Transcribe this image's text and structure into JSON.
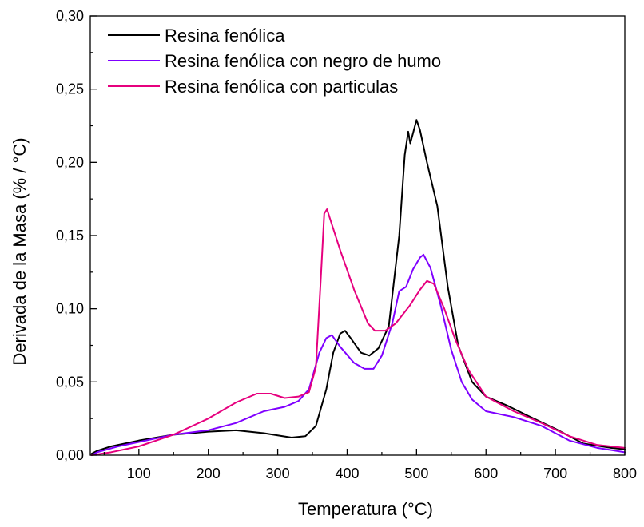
{
  "chart_data": {
    "type": "line",
    "title": "",
    "xlabel": "Temperatura (°C)",
    "ylabel": "Derivada de la Masa (% / °C)",
    "xlim": [
      30,
      800
    ],
    "ylim": [
      0,
      0.3
    ],
    "x_ticks": [
      100,
      200,
      300,
      400,
      500,
      600,
      700,
      800
    ],
    "x_tick_labels": [
      "100",
      "200",
      "300",
      "400",
      "500",
      "600",
      "700",
      "800"
    ],
    "y_ticks": [
      0,
      0.05,
      0.1,
      0.15,
      0.2,
      0.25,
      0.3
    ],
    "y_tick_labels": [
      "0,00",
      "0,05",
      "0,10",
      "0,15",
      "0,20",
      "0,25",
      "0,30"
    ],
    "grid": false,
    "legend_position": "top-left",
    "series": [
      {
        "name": "Resina fenólica",
        "color": "#000000",
        "points": [
          [
            32,
            0.001
          ],
          [
            40,
            0.003
          ],
          [
            60,
            0.006
          ],
          [
            100,
            0.01
          ],
          [
            150,
            0.014
          ],
          [
            200,
            0.016
          ],
          [
            240,
            0.017
          ],
          [
            280,
            0.015
          ],
          [
            320,
            0.012
          ],
          [
            340,
            0.013
          ],
          [
            355,
            0.02
          ],
          [
            370,
            0.045
          ],
          [
            380,
            0.07
          ],
          [
            390,
            0.083
          ],
          [
            397,
            0.085
          ],
          [
            405,
            0.08
          ],
          [
            420,
            0.07
          ],
          [
            432,
            0.068
          ],
          [
            445,
            0.073
          ],
          [
            460,
            0.088
          ],
          [
            475,
            0.15
          ],
          [
            483,
            0.205
          ],
          [
            488,
            0.221
          ],
          [
            491,
            0.213
          ],
          [
            495,
            0.22
          ],
          [
            500,
            0.229
          ],
          [
            505,
            0.222
          ],
          [
            515,
            0.2
          ],
          [
            530,
            0.17
          ],
          [
            545,
            0.115
          ],
          [
            560,
            0.075
          ],
          [
            580,
            0.05
          ],
          [
            600,
            0.04
          ],
          [
            630,
            0.034
          ],
          [
            660,
            0.027
          ],
          [
            700,
            0.018
          ],
          [
            740,
            0.008
          ],
          [
            780,
            0.005
          ],
          [
            800,
            0.004
          ]
        ]
      },
      {
        "name": "Resina fenólica con negro de humo",
        "color": "#7f00ff",
        "points": [
          [
            32,
            0.0
          ],
          [
            40,
            0.002
          ],
          [
            70,
            0.006
          ],
          [
            100,
            0.009
          ],
          [
            150,
            0.014
          ],
          [
            200,
            0.017
          ],
          [
            240,
            0.022
          ],
          [
            280,
            0.03
          ],
          [
            310,
            0.033
          ],
          [
            330,
            0.037
          ],
          [
            345,
            0.045
          ],
          [
            360,
            0.07
          ],
          [
            370,
            0.08
          ],
          [
            378,
            0.082
          ],
          [
            390,
            0.074
          ],
          [
            410,
            0.063
          ],
          [
            425,
            0.059
          ],
          [
            438,
            0.059
          ],
          [
            450,
            0.068
          ],
          [
            465,
            0.09
          ],
          [
            475,
            0.112
          ],
          [
            485,
            0.115
          ],
          [
            495,
            0.127
          ],
          [
            505,
            0.135
          ],
          [
            510,
            0.137
          ],
          [
            520,
            0.128
          ],
          [
            535,
            0.102
          ],
          [
            550,
            0.072
          ],
          [
            565,
            0.05
          ],
          [
            580,
            0.038
          ],
          [
            600,
            0.03
          ],
          [
            640,
            0.026
          ],
          [
            680,
            0.02
          ],
          [
            720,
            0.01
          ],
          [
            760,
            0.005
          ],
          [
            800,
            0.002
          ]
        ]
      },
      {
        "name": "Resina fenólica con particulas",
        "color": "#e6007e",
        "points": [
          [
            32,
            0.0
          ],
          [
            60,
            0.002
          ],
          [
            100,
            0.006
          ],
          [
            150,
            0.014
          ],
          [
            200,
            0.025
          ],
          [
            240,
            0.036
          ],
          [
            270,
            0.042
          ],
          [
            290,
            0.042
          ],
          [
            310,
            0.039
          ],
          [
            330,
            0.04
          ],
          [
            345,
            0.043
          ],
          [
            355,
            0.06
          ],
          [
            362,
            0.12
          ],
          [
            367,
            0.165
          ],
          [
            371,
            0.168
          ],
          [
            375,
            0.162
          ],
          [
            390,
            0.14
          ],
          [
            410,
            0.113
          ],
          [
            430,
            0.09
          ],
          [
            440,
            0.085
          ],
          [
            455,
            0.085
          ],
          [
            470,
            0.09
          ],
          [
            490,
            0.102
          ],
          [
            505,
            0.113
          ],
          [
            515,
            0.119
          ],
          [
            525,
            0.117
          ],
          [
            540,
            0.1
          ],
          [
            555,
            0.08
          ],
          [
            575,
            0.058
          ],
          [
            600,
            0.04
          ],
          [
            640,
            0.03
          ],
          [
            680,
            0.022
          ],
          [
            720,
            0.013
          ],
          [
            760,
            0.007
          ],
          [
            800,
            0.005
          ]
        ]
      }
    ]
  }
}
